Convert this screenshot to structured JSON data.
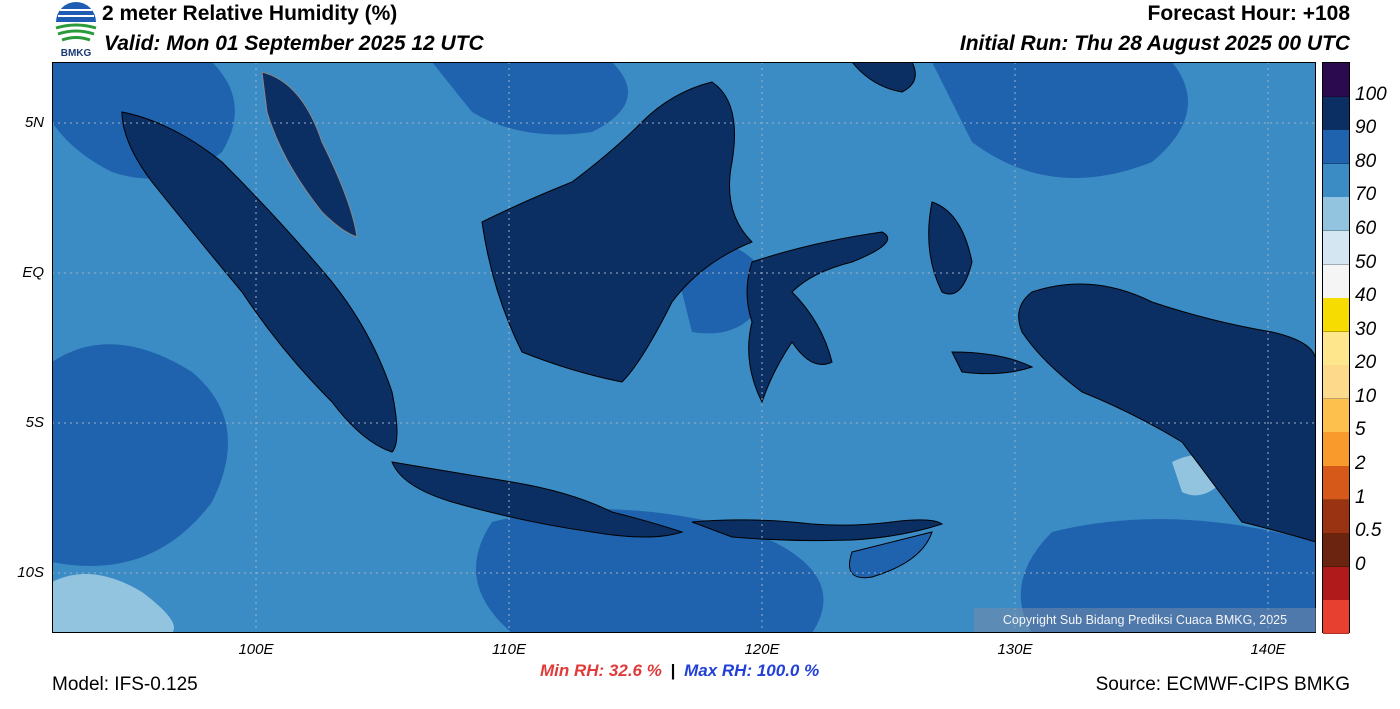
{
  "header": {
    "title": "2 meter Relative Humidity (%)",
    "valid": "Valid: Mon 01 September 2025 12 UTC",
    "forecast_hour": "Forecast Hour: +108",
    "initial_run": "Initial Run: Thu 28 August 2025 00 UTC",
    "logo_text": "BMKG"
  },
  "axes": {
    "lat_labels": [
      "5N",
      "EQ",
      "5S",
      "10S"
    ],
    "lon_labels": [
      "100E",
      "110E",
      "120E",
      "130E",
      "140E"
    ]
  },
  "stats": {
    "min": "Min RH:  32.6 %",
    "separator": "|",
    "max": "Max RH: 100.0 %"
  },
  "footer": {
    "model": "Model: IFS-0.125",
    "source": "Source: ECMWF-CIPS BMKG",
    "copyright": "Copyright Sub Bidang Prediksi Cuaca BMKG, 2025"
  },
  "colorbar": {
    "labels": [
      "100",
      "90",
      "80",
      "70",
      "60",
      "50",
      "40",
      "30",
      "20",
      "10",
      "5",
      "2",
      "1",
      "0.5",
      "0"
    ],
    "colors": [
      "#2b0a4f",
      "#0b2e63",
      "#1f62ad",
      "#3b8bc5",
      "#92c4e0",
      "#d3e6f1",
      "#f5f5f5",
      "#f6dc00",
      "#fde68c",
      "#fdd98c",
      "#fdc04c",
      "#f89a2c",
      "#d7591a",
      "#9a3312",
      "#6a2410",
      "#b01a1a",
      "#e84030"
    ]
  },
  "colors": {
    "ocean": "#3b8bc5",
    "land_humid": "#0b2e63",
    "land_mid": "#1f62ad",
    "dry_patch": "#92c4e0"
  }
}
